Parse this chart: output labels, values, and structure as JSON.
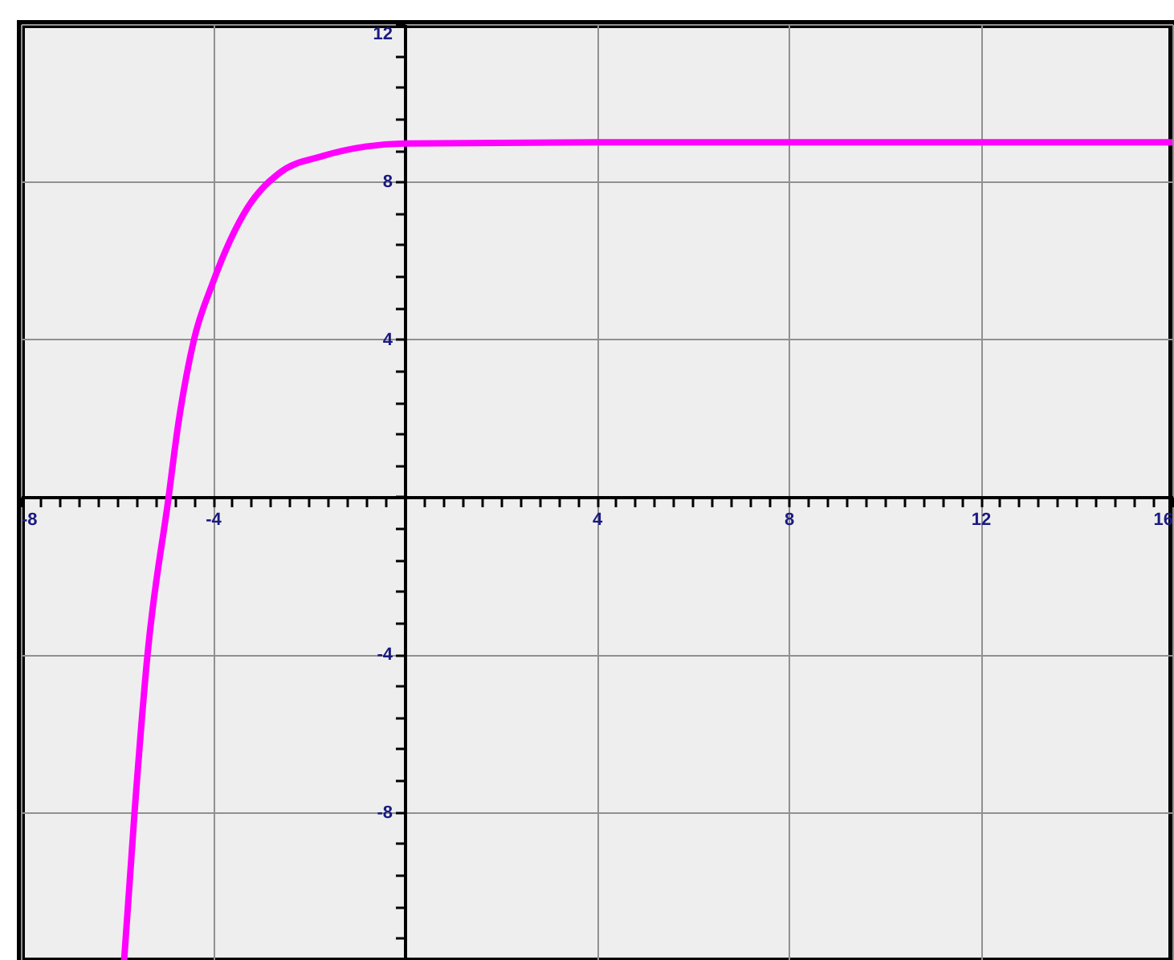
{
  "chart_data": {
    "type": "line",
    "x": [
      -5.85,
      -5.63,
      -5.36,
      -4.92,
      -4.73,
      -4.4,
      -4,
      -3.28,
      -2.61,
      -1.71,
      -0.82,
      0,
      4,
      8,
      12,
      16
    ],
    "series": [
      {
        "color": "#ff00ff",
        "values": [
          -11.8,
          -8,
          -4,
          0,
          1.76,
          3.95,
          5.43,
          7.33,
          8.22,
          8.65,
          8.89,
          8.97,
          9,
          9,
          9,
          9
        ]
      }
    ],
    "xlim": [
      -8,
      16
    ],
    "ylim": [
      -11.8,
      12
    ],
    "xticks": [
      -8,
      {
        "value": -7.6,
        "label": null
      },
      {
        "value": -7.2,
        "label": null
      },
      {
        "value": -6.8,
        "label": null
      },
      {
        "value": -6.4,
        "label": null
      },
      {
        "value": -6,
        "label": null
      },
      {
        "value": -5.6,
        "label": null
      },
      {
        "value": -5.2,
        "label": null
      },
      {
        "value": -4.8,
        "label": null
      },
      {
        "value": -4.4,
        "label": null
      },
      -4,
      {
        "value": -3.6,
        "label": null
      },
      {
        "value": -3.2,
        "label": null
      },
      {
        "value": -2.8,
        "label": null
      },
      {
        "value": -2.4,
        "label": null
      },
      {
        "value": -2,
        "label": null
      },
      {
        "value": -1.6,
        "label": null
      },
      {
        "value": -1.2,
        "label": null
      },
      {
        "value": -0.8,
        "label": null
      },
      {
        "value": -0.4,
        "label": null
      },
      {
        "value": 0,
        "label": null
      },
      {
        "value": 0.4,
        "label": null
      },
      {
        "value": 0.8,
        "label": null
      },
      {
        "value": 1.2,
        "label": null
      },
      {
        "value": 1.6,
        "label": null
      },
      {
        "value": 2,
        "label": null
      },
      {
        "value": 2.4,
        "label": null
      },
      {
        "value": 2.8,
        "label": null
      },
      {
        "value": 3.2,
        "label": null
      },
      {
        "value": 3.6,
        "label": null
      },
      4,
      {
        "value": 4.4,
        "label": null
      },
      {
        "value": 4.8,
        "label": null
      },
      {
        "value": 5.2,
        "label": null
      },
      {
        "value": 5.6,
        "label": null
      },
      {
        "value": 6,
        "label": null
      },
      {
        "value": 6.4,
        "label": null
      },
      {
        "value": 6.8,
        "label": null
      },
      {
        "value": 7.2,
        "label": null
      },
      {
        "value": 7.6,
        "label": null
      },
      8,
      {
        "value": 8.4,
        "label": null
      },
      {
        "value": 8.8,
        "label": null
      },
      {
        "value": 9.2,
        "label": null
      },
      {
        "value": 9.6,
        "label": null
      },
      {
        "value": 10,
        "label": null
      },
      {
        "value": 10.4,
        "label": null
      },
      {
        "value": 10.8,
        "label": null
      },
      {
        "value": 11.2,
        "label": null
      },
      {
        "value": 11.6,
        "label": null
      },
      12,
      {
        "value": 12.4,
        "label": null
      },
      {
        "value": 12.8,
        "label": null
      },
      {
        "value": 13.2,
        "label": null
      },
      {
        "value": 13.6,
        "label": null
      },
      {
        "value": 14,
        "label": null
      },
      {
        "value": 14.4,
        "label": null
      },
      {
        "value": 14.8,
        "label": null
      },
      {
        "value": 15.2,
        "label": null
      },
      {
        "value": 15.6,
        "label": null
      },
      16
    ],
    "yticks": [
      {
        "value": -11.2,
        "label": null
      },
      {
        "value": -10.4,
        "label": null
      },
      {
        "value": -9.6,
        "label": null
      },
      {
        "value": -8.8,
        "label": null
      },
      -8,
      {
        "value": -7.2,
        "label": null
      },
      {
        "value": -6.4,
        "label": null
      },
      {
        "value": -5.6,
        "label": null
      },
      {
        "value": -4.8,
        "label": null
      },
      -4,
      {
        "value": -3.2,
        "label": null
      },
      {
        "value": -2.4,
        "label": null
      },
      {
        "value": -1.6,
        "label": null
      },
      {
        "value": -0.8,
        "label": null
      },
      {
        "value": 0,
        "label": null
      },
      {
        "value": 0.8,
        "label": null
      },
      {
        "value": 1.6,
        "label": null
      },
      {
        "value": 2.4,
        "label": null
      },
      {
        "value": 3.2,
        "label": null
      },
      4,
      {
        "value": 4.8,
        "label": null
      },
      {
        "value": 5.6,
        "label": null
      },
      {
        "value": 6.4,
        "label": null
      },
      {
        "value": 7.2,
        "label": null
      },
      8,
      {
        "value": 8.8,
        "label": null
      },
      {
        "value": 9.6,
        "label": null
      },
      {
        "value": 10.4,
        "label": null
      },
      {
        "value": 11.2,
        "label": null
      },
      12
    ],
    "grid": true
  }
}
